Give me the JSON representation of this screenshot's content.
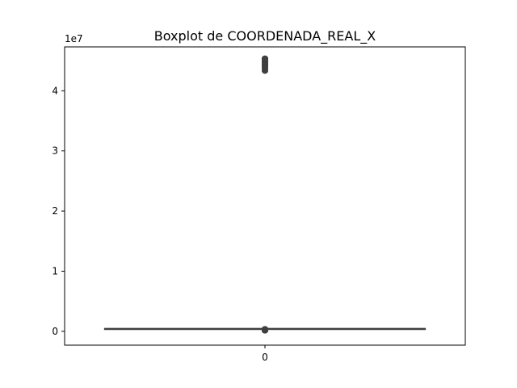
{
  "chart_data": {
    "type": "box",
    "title": "Boxplot de COORDENADA_REAL_X",
    "xlabel": "",
    "ylabel": "",
    "offset_text": "1e7",
    "categories": [
      "0"
    ],
    "yticks": [
      0,
      1,
      2,
      3,
      4
    ],
    "yticks_labels": [
      "0",
      "1",
      "2",
      "3",
      "4"
    ],
    "ylim": [
      -0.23,
      4.73
    ],
    "scale": 10000000,
    "boxes": [
      {
        "category": "0",
        "q1": 0.043,
        "median": 0.044,
        "q3": 0.046,
        "whisker_low": 0.043,
        "whisker_high": 0.046,
        "outliers_low": [
          0.01,
          0.012,
          0.015,
          0.018,
          0.02,
          0.022,
          0.024,
          0.026,
          0.028,
          0.03,
          0.032,
          0.034,
          0.036,
          0.038,
          0.04
        ],
        "outliers_high": [
          4.33,
          4.36,
          4.38,
          4.4,
          4.42,
          4.43,
          4.44,
          4.45,
          4.46,
          4.47,
          4.48,
          4.49,
          4.5,
          4.52,
          4.54
        ]
      }
    ],
    "colors": {
      "box_fill": "#3274a1",
      "line": "#3f3f3f",
      "outlier": "#3f3f3f",
      "axis": "#000000"
    }
  }
}
